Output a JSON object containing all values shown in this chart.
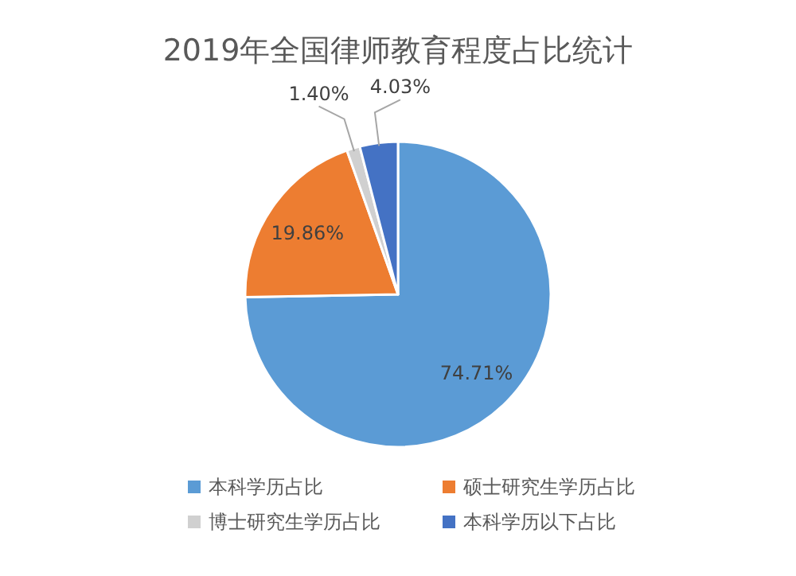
{
  "chart_data": {
    "type": "pie",
    "title": "2019年全国律师教育程度占比统计",
    "categories": [
      "本科学历占比",
      "硕士研究生学历占比",
      "博士研究生学历占比",
      "本科学历以下占比"
    ],
    "values": [
      74.71,
      19.86,
      1.4,
      4.03
    ],
    "colors": [
      "#5b9bd5",
      "#ed7d31",
      "#d0d0d0",
      "#4472c4"
    ],
    "value_labels": [
      "74.71%",
      "19.86%",
      "1.40%",
      "4.03%"
    ],
    "legend": "bottom"
  }
}
